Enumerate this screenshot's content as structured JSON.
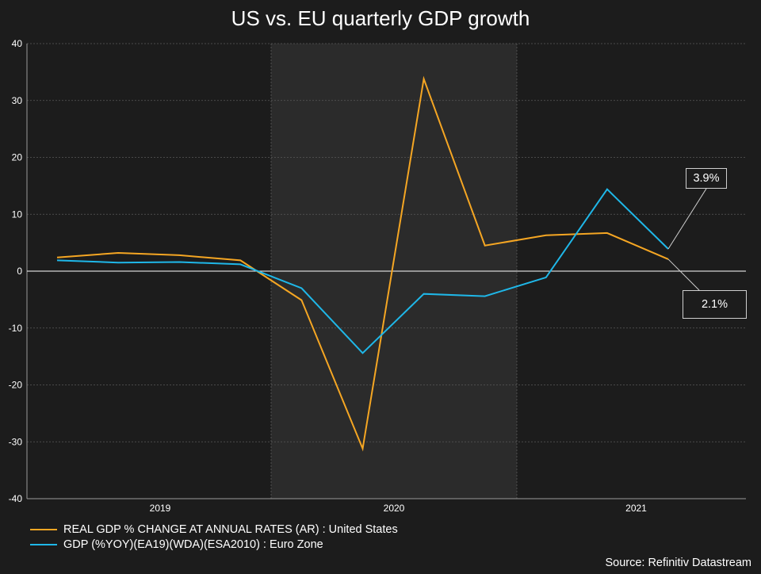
{
  "colors": {
    "background": "#1c1c1c",
    "plot_background": "#1c1c1c",
    "shaded_band": "#2b2b2b",
    "us_line": "#f5a623",
    "eu_line": "#1fb7e8",
    "grid": "#5a5a5a",
    "zero_line": "#ffffff",
    "callout_border": "#cfcfcf"
  },
  "chart_data": {
    "type": "line",
    "title": "US vs. EU quarterly GDP growth",
    "xlabel": "",
    "ylabel": "",
    "ylim": [
      -40,
      40
    ],
    "yticks": [
      40,
      30,
      20,
      10,
      0,
      -10,
      -20,
      -30,
      -40
    ],
    "year_labels": [
      "2019",
      "2020",
      "2021"
    ],
    "shaded_period": "2020",
    "x": [
      "2019Q1",
      "2019Q2",
      "2019Q3",
      "2019Q4",
      "2020Q1",
      "2020Q2",
      "2020Q3",
      "2020Q4",
      "2021Q1",
      "2021Q2",
      "2021Q3"
    ],
    "series": [
      {
        "name": "REAL GDP % CHANGE AT ANNUAL RATES (AR) : United States",
        "color_key": "us_line",
        "values": [
          2.4,
          3.2,
          2.8,
          1.9,
          -5.1,
          -31.2,
          33.8,
          4.5,
          6.3,
          6.7,
          2.1
        ]
      },
      {
        "name": "GDP (%YOY)(EA19)(WDA)(ESA2010) : Euro Zone",
        "color_key": "eu_line",
        "values": [
          1.9,
          1.5,
          1.6,
          1.2,
          -3.0,
          -14.4,
          -4.0,
          -4.4,
          -1.1,
          14.4,
          3.9
        ]
      }
    ],
    "annotations": [
      {
        "text": "3.9%",
        "series": "Euro Zone",
        "at": "2021Q3"
      },
      {
        "text": "2.1%",
        "series": "United States",
        "at": "2021Q3"
      }
    ],
    "legend": "bottom-left",
    "source": "Source: Refinitiv Datastream"
  }
}
